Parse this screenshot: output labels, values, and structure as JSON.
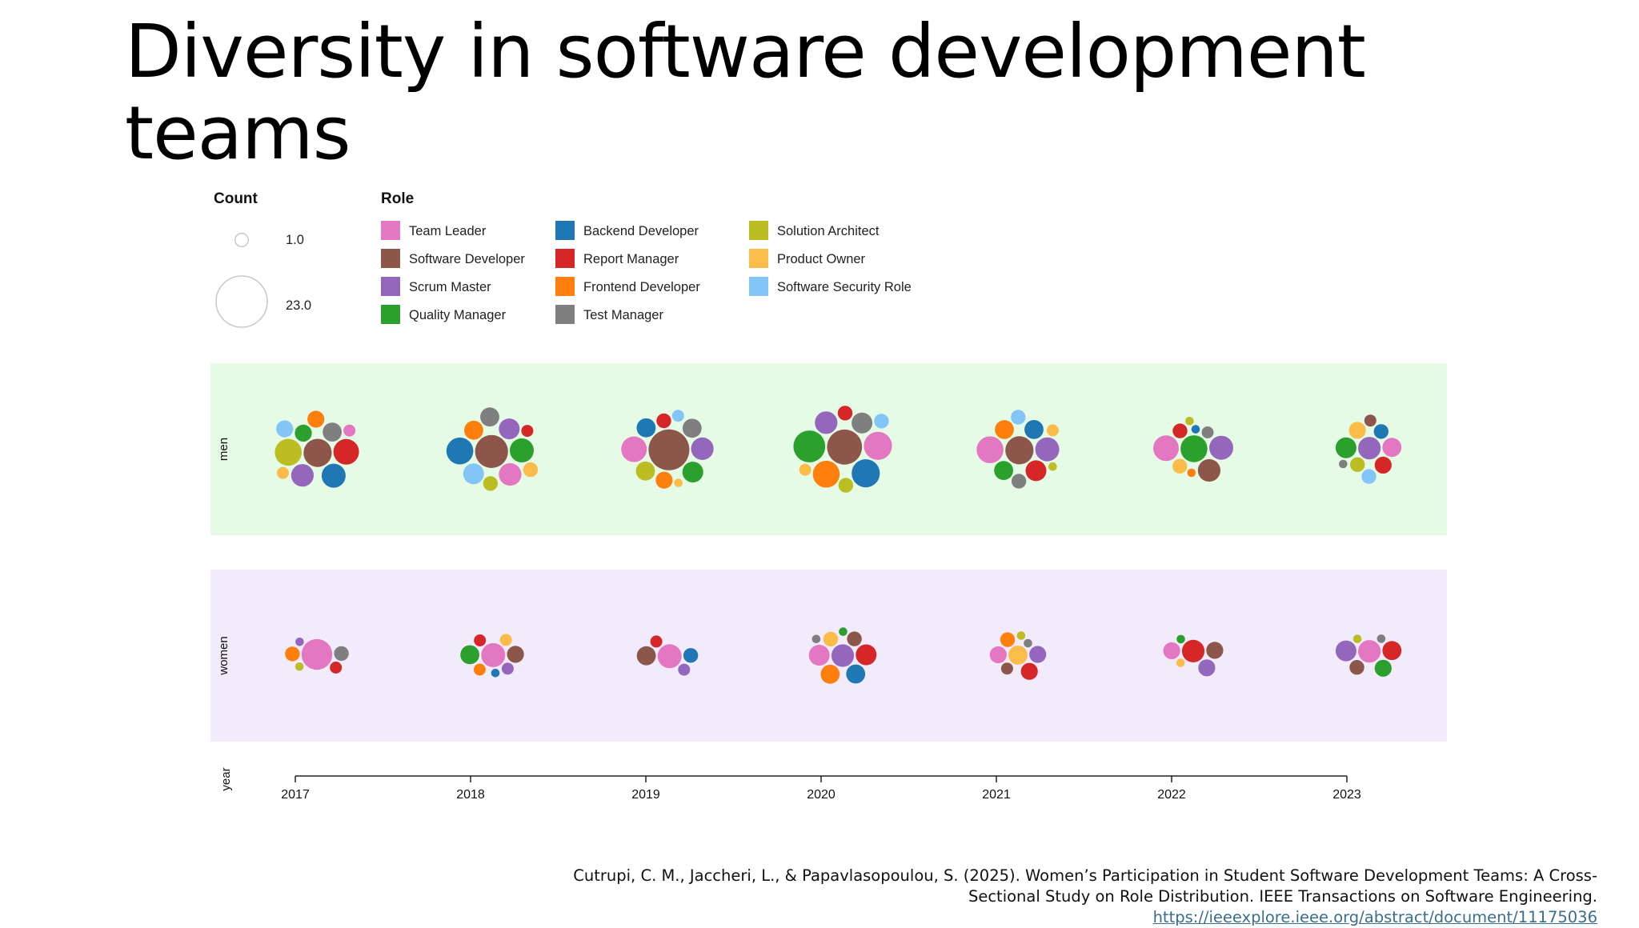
{
  "slide": {
    "title": "Diversity in software development teams",
    "citation_line1": "Cutrupi, C. M., Jaccheri, L., & Papavlasopoulou, S. (2025). Women’s Participation in Student Software Development Teams: A Cross-",
    "citation_line2": "Sectional Study on Role Distribution. IEEE Transactions on Software Engineering.",
    "citation_link": "https://ieeexplore.ieee.org/abstract/document/11175036"
  },
  "chart_data": {
    "type": "scatter",
    "subtype": "packed-bubble",
    "title": "",
    "x_field_label": "year",
    "facet_labels": [
      "men",
      "women"
    ],
    "facet_colors": {
      "men": "#e6fbe6",
      "women": "#f1ebfc"
    },
    "years": [
      "2017",
      "2018",
      "2019",
      "2020",
      "2021",
      "2022",
      "2023"
    ],
    "size_legend": {
      "title": "Count",
      "min": "1.0",
      "max": "23.0"
    },
    "color_legend_title": "Role",
    "roles": [
      {
        "name": "Team Leader",
        "color": "#e377c2"
      },
      {
        "name": "Software Developer",
        "color": "#8c564b"
      },
      {
        "name": "Scrum Master",
        "color": "#9467bd"
      },
      {
        "name": "Quality Manager",
        "color": "#2ca02c"
      },
      {
        "name": "Backend Developer",
        "color": "#1f77b4"
      },
      {
        "name": "Report Manager",
        "color": "#d62728"
      },
      {
        "name": "Frontend Developer",
        "color": "#ff7f0e"
      },
      {
        "name": "Test Manager",
        "color": "#7f7f7f"
      },
      {
        "name": "Solution Architect",
        "color": "#bcbd22"
      },
      {
        "name": "Product Owner",
        "color": "#fbbc4a"
      },
      {
        "name": "Software Security Role",
        "color": "#83c5f6"
      }
    ],
    "role_order": [
      "Team Leader",
      "Software Developer",
      "Scrum Master",
      "Quality Manager",
      "Backend Developer",
      "Report Manager",
      "Frontend Developer",
      "Test Manager",
      "Solution Architect",
      "Product Owner",
      "Software Security Role"
    ],
    "counts": {
      "men": {
        "2017": [
          2,
          11,
          7,
          4,
          8,
          9,
          4,
          5,
          10,
          2,
          4
        ],
        "2018": [
          7,
          15,
          6,
          8,
          10,
          2,
          5,
          5,
          3,
          3,
          6
        ],
        "2019": [
          9,
          23,
          7,
          6,
          5,
          3,
          4,
          5,
          5,
          1,
          2
        ],
        "2020": [
          11,
          17,
          7,
          14,
          11,
          3,
          10,
          6,
          3,
          2,
          3
        ],
        "2021": [
          10,
          11,
          8,
          5,
          5,
          6,
          5,
          3,
          1,
          2,
          3
        ],
        "2022": [
          9,
          7,
          8,
          10,
          1,
          3,
          1,
          2,
          1,
          3,
          0
        ],
        "2023": [
          5,
          2,
          7,
          6,
          3,
          4,
          0,
          1,
          3,
          4,
          3
        ]
      },
      "women": {
        "2017": [
          13,
          0,
          1,
          0,
          0,
          2,
          3,
          3,
          1,
          0,
          0
        ],
        "2018": [
          8,
          4,
          2,
          5,
          1,
          2,
          2,
          0,
          0,
          2,
          0
        ],
        "2019": [
          8,
          5,
          2,
          0,
          3,
          2,
          0,
          0,
          0,
          0,
          0
        ],
        "2020": [
          6,
          3,
          7,
          1,
          5,
          6,
          5,
          1,
          0,
          3,
          0
        ],
        "2021": [
          4,
          2,
          4,
          0,
          0,
          4,
          3,
          1,
          1,
          5,
          0
        ],
        "2022": [
          4,
          4,
          4,
          1,
          0,
          7,
          0,
          0,
          0,
          1,
          0
        ],
        "2023": [
          7,
          3,
          6,
          4,
          0,
          5,
          0,
          1,
          1,
          0,
          0
        ]
      }
    }
  }
}
